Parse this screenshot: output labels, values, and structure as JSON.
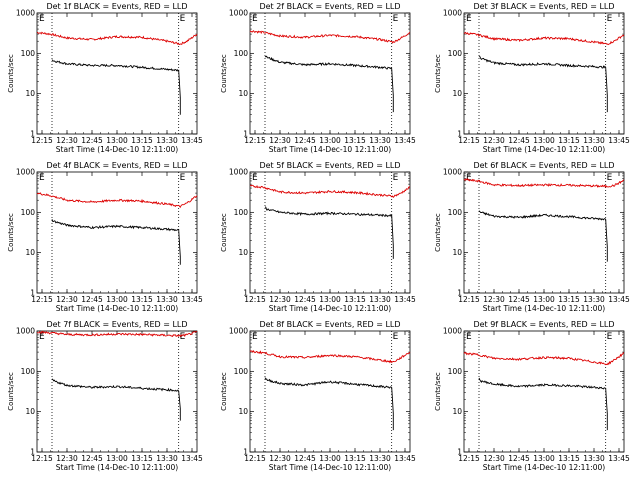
{
  "chart_data": {
    "type": "line",
    "yscale": "log",
    "ylim": [
      1,
      1000
    ],
    "y_ticks": [
      "1",
      "10",
      "100",
      "1000"
    ],
    "x_ticks": [
      "12:15",
      "12:30",
      "12:45",
      "13:00",
      "13:15",
      "13:30",
      "13:45"
    ],
    "xlim": [
      "12:12",
      "13:48"
    ],
    "xlabel": "Start Time (14-Dec-10 12:11:00)",
    "ylabel": "Counts/sec",
    "grid": false,
    "markers": {
      "start": {
        "label": "E",
        "time": "12:21"
      },
      "end": {
        "label": "E",
        "time": "13:37"
      }
    },
    "series_colors": {
      "events": "#000000",
      "lld": "#dd0000"
    },
    "panels": [
      {
        "title": "Det 1f BLACK = Events, RED = LLD",
        "series": [
          {
            "key": "lld",
            "x": [
              "12:12",
              "12:20",
              "12:30",
              "12:45",
              "13:00",
              "13:15",
              "13:30",
              "13:38",
              "13:42",
              "13:48"
            ],
            "y": [
              330,
              300,
              240,
              220,
              260,
              250,
              200,
              170,
              200,
              300
            ]
          },
          {
            "key": "events",
            "x": [
              "12:21",
              "12:22",
              "12:30",
              "12:45",
              "13:00",
              "13:15",
              "13:30",
              "13:37",
              "13:38",
              "13:38"
            ],
            "y": [
              70,
              65,
              55,
              50,
              50,
              45,
              40,
              38,
              8,
              3
            ]
          }
        ]
      },
      {
        "title": "Det 2f BLACK = Events, RED = LLD",
        "series": [
          {
            "key": "lld",
            "x": [
              "12:12",
              "12:20",
              "12:30",
              "12:45",
              "13:00",
              "13:15",
              "13:30",
              "13:38",
              "13:42",
              "13:48"
            ],
            "y": [
              360,
              330,
              270,
              250,
              280,
              260,
              220,
              190,
              230,
              330
            ]
          },
          {
            "key": "events",
            "x": [
              "12:21",
              "12:22",
              "12:30",
              "12:45",
              "13:00",
              "13:15",
              "13:30",
              "13:37",
              "13:38",
              "13:38"
            ],
            "y": [
              90,
              80,
              60,
              52,
              55,
              50,
              45,
              42,
              9,
              3.5
            ]
          }
        ]
      },
      {
        "title": "Det 3f BLACK = Events, RED = LLD",
        "series": [
          {
            "key": "lld",
            "x": [
              "12:12",
              "12:20",
              "12:30",
              "12:45",
              "13:00",
              "13:15",
              "13:30",
              "13:38",
              "13:42",
              "13:48"
            ],
            "y": [
              320,
              290,
              230,
              210,
              240,
              230,
              190,
              170,
              200,
              290
            ]
          },
          {
            "key": "events",
            "x": [
              "12:21",
              "12:22",
              "12:30",
              "12:45",
              "13:00",
              "13:15",
              "13:30",
              "13:37",
              "13:38",
              "13:38"
            ],
            "y": [
              85,
              75,
              58,
              52,
              55,
              50,
              47,
              45,
              9,
              3.5
            ]
          }
        ]
      },
      {
        "title": "Det 4f BLACK = Events, RED = LLD",
        "series": [
          {
            "key": "lld",
            "x": [
              "12:12",
              "12:20",
              "12:30",
              "12:45",
              "13:00",
              "13:15",
              "13:30",
              "13:38",
              "13:42",
              "13:48"
            ],
            "y": [
              300,
              260,
              200,
              180,
              200,
              190,
              160,
              140,
              170,
              260
            ]
          },
          {
            "key": "events",
            "x": [
              "12:21",
              "12:22",
              "12:30",
              "12:45",
              "13:00",
              "13:15",
              "13:30",
              "13:37",
              "13:38",
              "13:38"
            ],
            "y": [
              65,
              60,
              48,
              42,
              45,
              42,
              38,
              36,
              8,
              5
            ]
          }
        ]
      },
      {
        "title": "Det 5f BLACK = Events, RED = LLD",
        "series": [
          {
            "key": "lld",
            "x": [
              "12:12",
              "12:20",
              "12:30",
              "12:45",
              "13:00",
              "13:15",
              "13:30",
              "13:38",
              "13:42",
              "13:48"
            ],
            "y": [
              450,
              420,
              320,
              300,
              330,
              310,
              270,
              250,
              290,
              420
            ]
          },
          {
            "key": "events",
            "x": [
              "12:21",
              "12:22",
              "12:30",
              "12:45",
              "13:00",
              "13:15",
              "13:30",
              "13:37",
              "13:38",
              "13:38"
            ],
            "y": [
              140,
              120,
              100,
              90,
              95,
              90,
              85,
              82,
              15,
              7
            ]
          }
        ]
      },
      {
        "title": "Det 6f BLACK = Events, RED = LLD",
        "series": [
          {
            "key": "lld",
            "x": [
              "12:12",
              "12:20",
              "12:30",
              "12:45",
              "13:00",
              "13:15",
              "13:30",
              "13:38",
              "13:42",
              "13:48"
            ],
            "y": [
              650,
              600,
              480,
              460,
              480,
              470,
              450,
              440,
              460,
              620
            ]
          },
          {
            "key": "events",
            "x": [
              "12:21",
              "12:22",
              "12:30",
              "12:45",
              "13:00",
              "13:15",
              "13:30",
              "13:37",
              "13:38",
              "13:38"
            ],
            "y": [
              110,
              100,
              80,
              75,
              85,
              78,
              70,
              68,
              14,
              6
            ]
          }
        ]
      },
      {
        "title": "Det 7f BLACK = Events, RED = LLD",
        "series": [
          {
            "key": "lld",
            "x": [
              "12:12",
              "12:20",
              "12:30",
              "12:45",
              "13:00",
              "13:15",
              "13:30",
              "13:38",
              "13:42",
              "13:48"
            ],
            "y": [
              950,
              900,
              820,
              800,
              840,
              820,
              780,
              760,
              800,
              950
            ]
          },
          {
            "key": "events",
            "x": [
              "12:21",
              "12:22",
              "12:30",
              "12:45",
              "13:00",
              "13:15",
              "13:30",
              "13:37",
              "13:38",
              "13:38"
            ],
            "y": [
              65,
              58,
              45,
              40,
              42,
              38,
              35,
              33,
              12,
              6
            ]
          }
        ]
      },
      {
        "title": "Det 8f BLACK = Events, RED = LLD",
        "series": [
          {
            "key": "lld",
            "x": [
              "12:12",
              "12:20",
              "12:30",
              "12:45",
              "13:00",
              "13:15",
              "13:30",
              "13:38",
              "13:42",
              "13:48"
            ],
            "y": [
              310,
              290,
              230,
              220,
              250,
              230,
              190,
              170,
              210,
              300
            ]
          },
          {
            "key": "events",
            "x": [
              "12:21",
              "12:22",
              "12:30",
              "12:45",
              "13:00",
              "13:15",
              "13:30",
              "13:37",
              "13:38",
              "13:38"
            ],
            "y": [
              70,
              62,
              50,
              46,
              55,
              48,
              42,
              40,
              9,
              3.5
            ]
          }
        ]
      },
      {
        "title": "Det 9f BLACK = Events, RED = LLD",
        "series": [
          {
            "key": "lld",
            "x": [
              "12:12",
              "12:20",
              "12:30",
              "12:45",
              "13:00",
              "13:15",
              "13:30",
              "13:38",
              "13:42",
              "13:48"
            ],
            "y": [
              280,
              260,
              210,
              200,
              220,
              210,
              170,
              150,
              190,
              280
            ]
          },
          {
            "key": "events",
            "x": [
              "12:21",
              "12:22",
              "12:30",
              "12:45",
              "13:00",
              "13:15",
              "13:30",
              "13:37",
              "13:38",
              "13:38"
            ],
            "y": [
              65,
              58,
              48,
              42,
              46,
              44,
              40,
              38,
              9,
              3.5
            ]
          }
        ]
      }
    ]
  }
}
